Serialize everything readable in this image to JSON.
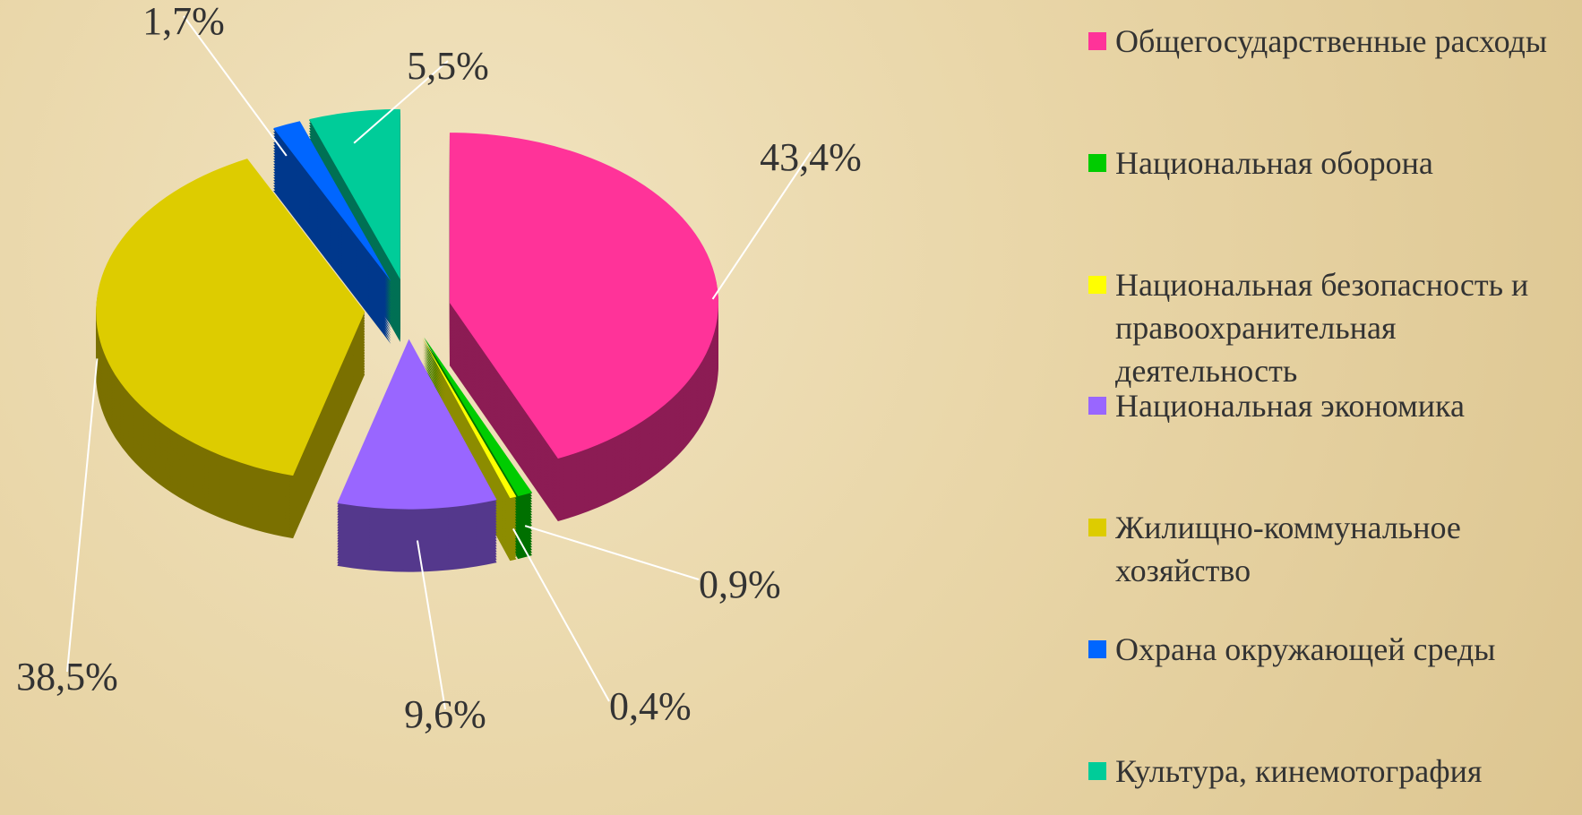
{
  "chart_data": {
    "type": "pie",
    "categories": [
      "Общегосударственные расходы",
      "Национальная оборона",
      "Национальная безопасность и правоохранительная деятельность",
      "Национальная экономика",
      "Жилищно-коммунальное хозяйство",
      "Охрана окружающей среды",
      "Культура, кинемотография"
    ],
    "values": [
      43.4,
      0.9,
      0.4,
      9.6,
      38.5,
      1.7,
      5.5
    ],
    "value_labels": [
      "43,4%",
      "0,9%",
      "0,4%",
      "9,6%",
      "38,5%",
      "1,7%",
      "5,5%"
    ],
    "colors": [
      "#ff3399",
      "#00cc00",
      "#ffff00",
      "#9966ff",
      "#ddcc00",
      "#0066ff",
      "#00cc99"
    ],
    "legend": "right"
  }
}
